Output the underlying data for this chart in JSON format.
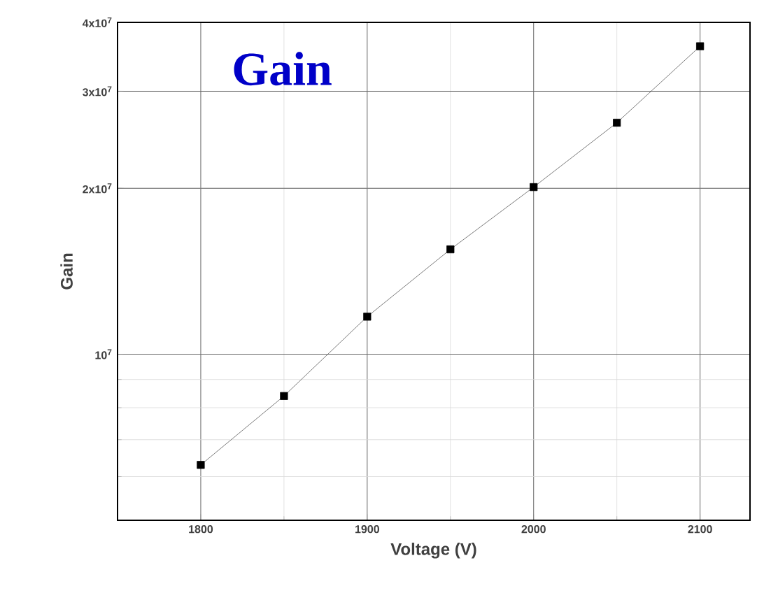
{
  "chart_data": {
    "type": "line",
    "title": "Gain",
    "xlabel": "Voltage (V)",
    "ylabel": "Gain",
    "x": [
      1800,
      1850,
      1900,
      1950,
      2000,
      2050,
      2100
    ],
    "series": [
      {
        "color": "#000000",
        "values": [
          6300000,
          8400000,
          11700000,
          15500000,
          20100000,
          26300000,
          36200000
        ]
      }
    ],
    "xlim": [
      1750,
      2130
    ],
    "xticks": [
      1800,
      1900,
      2000,
      2100
    ],
    "ylim": [
      5000000,
      40000000
    ],
    "yticks": [
      {
        "value": 10000000,
        "label": "10$^{7}$"
      },
      {
        "value": 20000000,
        "label": "2x10$^{7}$"
      },
      {
        "value": 30000000,
        "label": "3x10$^{7}$"
      },
      {
        "value": 40000000,
        "label": "4x10$^{7}$"
      }
    ],
    "log": true,
    "grid": true,
    "marker": "square",
    "line_style": "solid"
  }
}
